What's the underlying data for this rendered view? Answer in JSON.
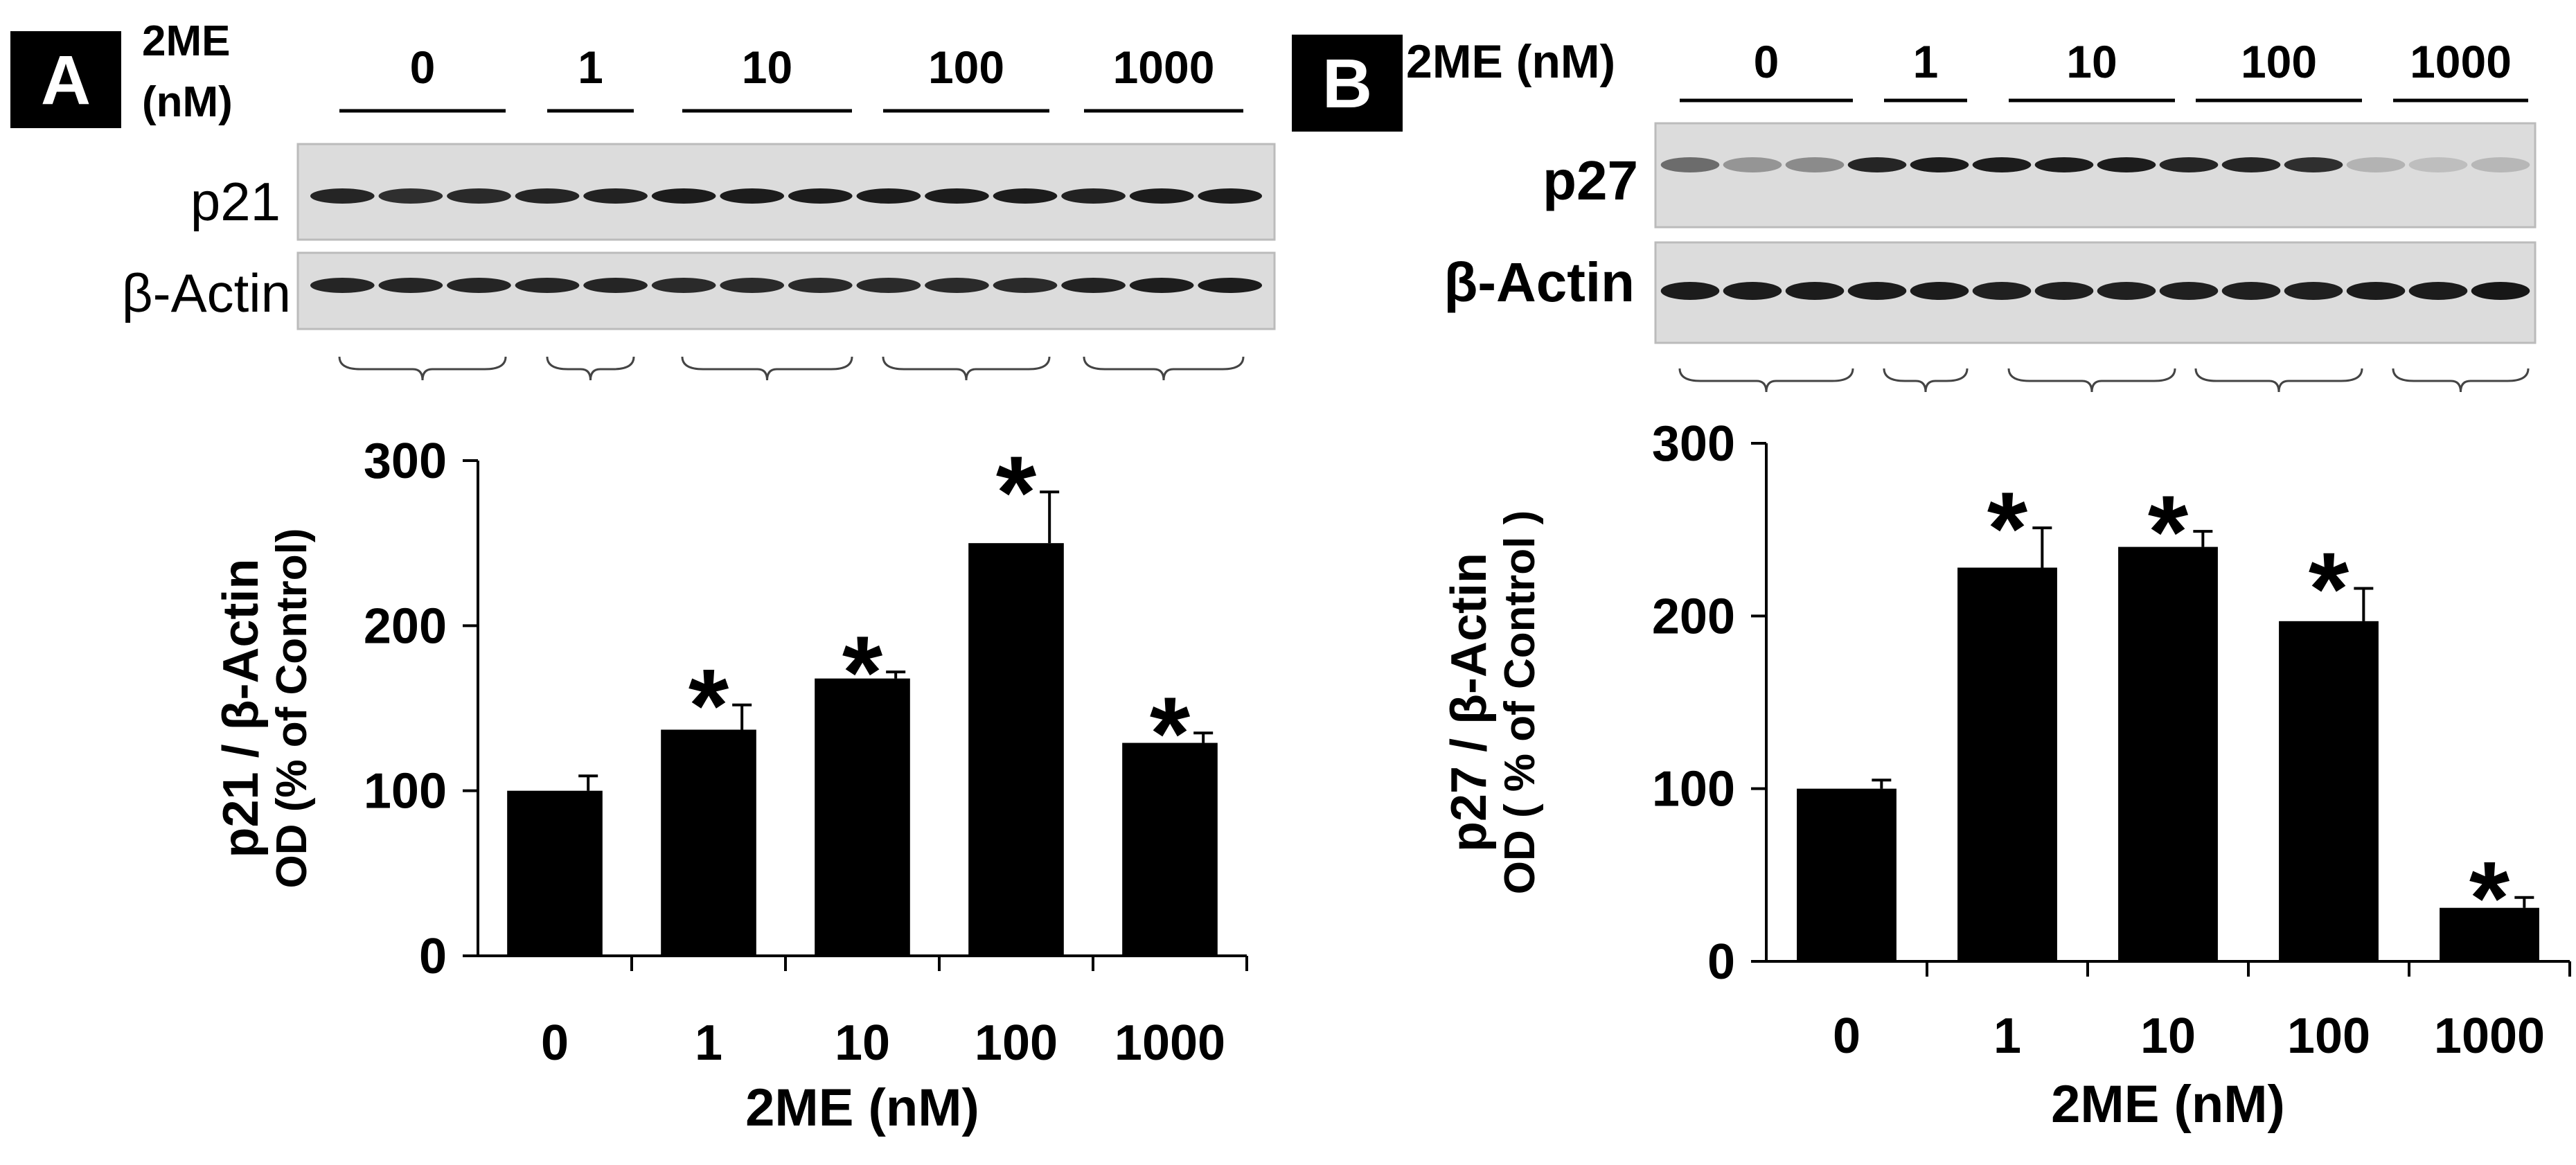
{
  "panels": [
    {
      "label": "A",
      "blot": {
        "treatment_label_line1": "2ME",
        "treatment_label_line2": "(nM)",
        "lane_groups": [
          "0",
          "1",
          "10",
          "100",
          "1000"
        ],
        "lanes_per_group": [
          3,
          2,
          3,
          3,
          3
        ],
        "rows": [
          {
            "name": "p21",
            "label_bold": false
          },
          {
            "name": "β-Actin",
            "label_bold": false
          }
        ]
      }
    },
    {
      "label": "B",
      "blot": {
        "treatment_label": "2ME (nM)",
        "lane_groups": [
          "0",
          "1",
          "10",
          "100",
          "1000"
        ],
        "lanes_per_group": [
          3,
          2,
          3,
          3,
          3
        ],
        "rows": [
          {
            "name": "p27",
            "label_bold": true
          },
          {
            "name": "β-Actin",
            "label_bold": true
          }
        ]
      }
    }
  ],
  "chart_data": [
    {
      "type": "bar",
      "panel": "A",
      "categories": [
        "0",
        "1",
        "10",
        "100",
        "1000"
      ],
      "values": [
        100,
        137,
        168,
        250,
        129
      ],
      "errors": [
        9,
        15,
        4,
        31,
        6
      ],
      "significant": [
        false,
        true,
        true,
        true,
        true
      ],
      "significance_marker": "*",
      "ylabel": "p21 / β-Actin",
      "ylabel2": "OD (% of Control)",
      "xlabel": "2ME (nM)",
      "ylim": [
        0,
        300
      ],
      "yticks": [
        0,
        100,
        200,
        300
      ],
      "bar_color": "#000000",
      "grid": false,
      "legend": "none"
    },
    {
      "type": "bar",
      "panel": "B",
      "categories": [
        "0",
        "1",
        "10",
        "100",
        "1000"
      ],
      "values": [
        100,
        228,
        240,
        197,
        31
      ],
      "errors": [
        5,
        23,
        9,
        19,
        6
      ],
      "significant": [
        false,
        true,
        true,
        true,
        true
      ],
      "significance_marker": "*",
      "ylabel": "p27 / β-Actin",
      "ylabel2": "OD ( % of Control )",
      "xlabel": "2ME (nM)",
      "ylim": [
        0,
        300
      ],
      "yticks": [
        0,
        100,
        200,
        300
      ],
      "bar_color": "#000000",
      "grid": false,
      "legend": "none"
    }
  ]
}
